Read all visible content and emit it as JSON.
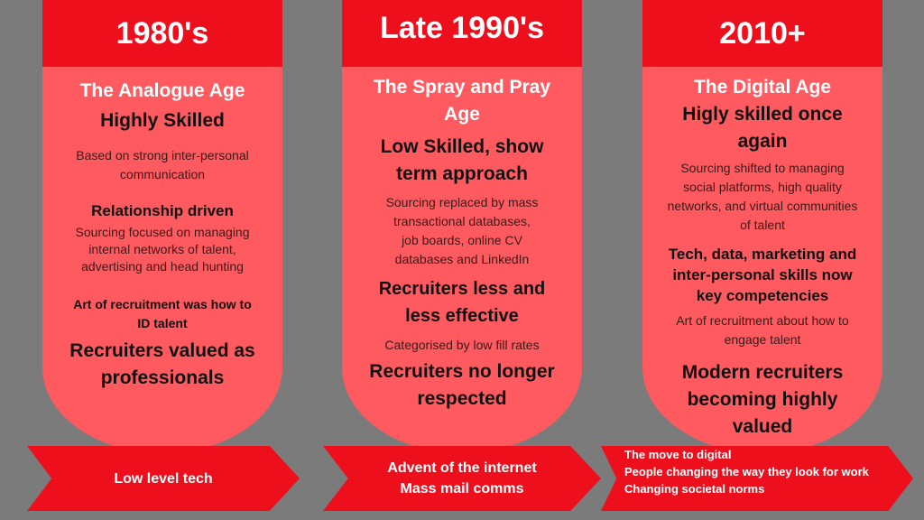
{
  "columns": [
    {
      "header": "1980's",
      "subtitle": "The Analogue Age",
      "heading1": "Highly Skilled",
      "text1": "Based on strong inter-personal communication",
      "heading2": "Relationship driven",
      "text2": "Sourcing focused on managing internal networks of talent, advertising and head hunting",
      "bold_small": "Art of recruitment was how to ID talent",
      "closing": "Recruiters valued as professionals"
    },
    {
      "header": "Late 1990's",
      "subtitle": "The Spray and Pray Age",
      "heading1": "Low Skilled, show term approach",
      "text1": "Sourcing replaced by mass transactional databases, job boards, online CV databases and LinkedIn",
      "heading2": "Recruiters less and less effective",
      "text2": "Categorised by low fill rates",
      "closing": "Recruiters no longer respected"
    },
    {
      "header": "2010+",
      "subtitle": "The Digital Age",
      "heading1": "Higly skilled once again",
      "text1": "Sourcing shifted to managing social platforms, high quality networks, and virtual communities of talent",
      "heading2": "Tech, data, marketing and inter-personal skills now key competencies",
      "text2": "Art of recruitment about how to engage talent",
      "closing": "Modern recruiters becoming highly valued"
    }
  ],
  "arrows": [
    {
      "lines": [
        "Low level tech"
      ]
    },
    {
      "lines": [
        "Advent of the internet",
        "Mass mail comms"
      ]
    },
    {
      "lines": [
        "The move to digital",
        "People changing the way they look for work",
        "Changing societal norms"
      ]
    }
  ],
  "colors": {
    "background": "#7b7b7b",
    "header_red": "#ee0f1d",
    "pill_red": "#ff5a5f"
  }
}
